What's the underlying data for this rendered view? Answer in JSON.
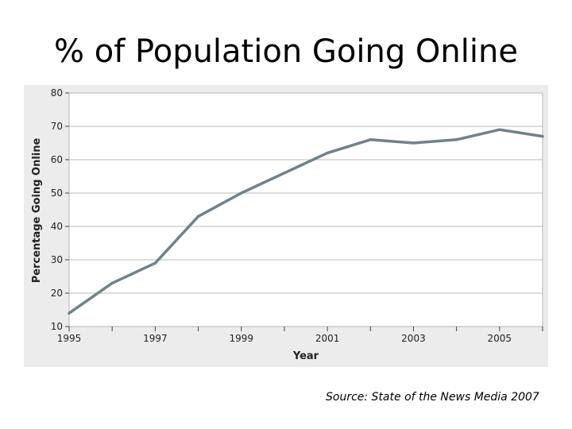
{
  "slide": {
    "title": "% of Population Going Online",
    "source": "Source: State of the News Media 2007"
  },
  "colors": {
    "plot_background": "#ffffff",
    "panel_background": "#ececec",
    "grid": "#bbbbbb",
    "line": "#6f8289",
    "text": "#222222"
  },
  "chart_data": {
    "type": "line",
    "xlabel": "Year",
    "ylabel": "Percentage Going Online",
    "xlim": [
      1995,
      2006
    ],
    "ylim": [
      10,
      80
    ],
    "x_ticks": [
      1995,
      1996,
      1997,
      1998,
      1999,
      2000,
      2001,
      2002,
      2003,
      2004,
      2005,
      2006
    ],
    "x_tick_labels": [
      "1995",
      "",
      "1997",
      "",
      "1999",
      "",
      "2001",
      "",
      "2003",
      "",
      "2005",
      ""
    ],
    "y_ticks": [
      10,
      20,
      30,
      40,
      50,
      60,
      70,
      80
    ],
    "y_tick_labels": [
      "10",
      "20",
      "30",
      "40",
      "50",
      "60",
      "70",
      "80"
    ],
    "grid": "horizontal",
    "series": [
      {
        "x": [
          1995,
          1996,
          1997,
          1998,
          1999,
          2000,
          2001,
          2002,
          2003,
          2004,
          2005,
          2006
        ],
        "values": [
          14,
          23,
          29,
          43,
          50,
          56,
          62,
          66,
          65,
          66,
          69,
          67
        ]
      }
    ]
  }
}
